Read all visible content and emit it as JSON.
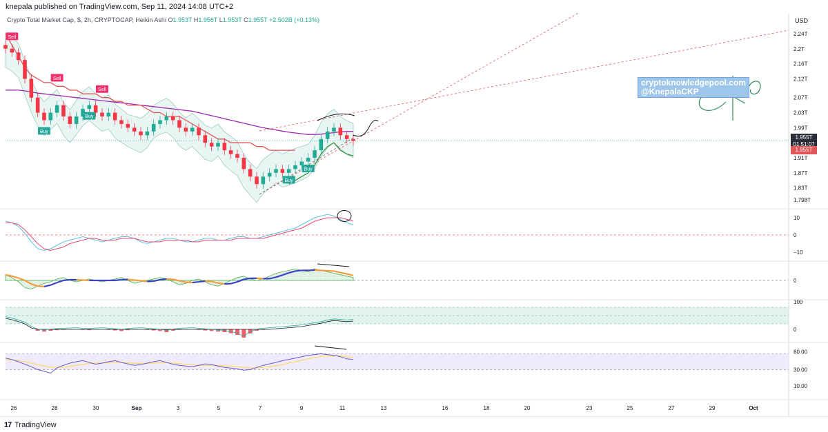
{
  "header": {
    "published": "knepala published on TradingView.com, Sep 11, 2024 14:08 UTC+2"
  },
  "symbol": {
    "title": "Crypto Total Market Cap, $, 2h, CRYPTOCAP, Heikin Ashi",
    "o_label": "O",
    "o": "1.953T",
    "h_label": "H",
    "h": "1.956T",
    "l_label": "L",
    "l": "1.953T",
    "c_label": "C",
    "c": "1.955T",
    "change": "+2.502B (+0.13%)"
  },
  "currency": "USD",
  "price_tags": {
    "last": "1.955T",
    "countdown": "01:51:07",
    "second": "1.955T"
  },
  "watermark": {
    "line1": "cryptoknowledgepool.com",
    "line2": "@KnepalaCKP"
  },
  "footer": {
    "logo_mark": "17",
    "brand": "TradingView"
  },
  "colors": {
    "up": "#22ab94",
    "down": "#f23645",
    "supertrend": "#e15759",
    "ema": "#9c27b0",
    "band": "#bfe3dd",
    "support": "#388e3c",
    "buy": "#26a69a",
    "sell": "#f0306a",
    "stoch_k": "#5fc3e4",
    "stoch_d": "#e84a6f",
    "wave": "#3c40c6",
    "wave_alt": "#f39c3d",
    "rsi": "#6a5acd",
    "rsi_ma": "#ffd54f"
  },
  "chart_data": {
    "type": "candlestick",
    "main": {
      "y_ticks": [
        "2.24T",
        "2.2T",
        "2.16T",
        "2.12T",
        "2.07T",
        "2.03T",
        "1.99T",
        "1.95T",
        "1.91T",
        "1.87T",
        "1.83T",
        "1.798T"
      ],
      "ylim": [
        1.78,
        2.26
      ],
      "close": [
        2.2,
        2.19,
        2.17,
        2.12,
        2.07,
        2.03,
        2.01,
        2.03,
        2.05,
        2.02,
        2.0,
        2.02,
        2.04,
        2.05,
        2.03,
        2.02,
        2.03,
        2.01,
        2.0,
        1.99,
        1.98,
        1.97,
        1.98,
        2.0,
        2.01,
        2.02,
        2.01,
        1.99,
        1.98,
        1.99,
        1.97,
        1.95,
        1.94,
        1.95,
        1.93,
        1.92,
        1.91,
        1.88,
        1.86,
        1.84,
        1.86,
        1.87,
        1.88,
        1.87,
        1.88,
        1.89,
        1.9,
        1.91,
        1.93,
        1.96,
        1.98,
        1.99,
        1.97,
        1.96,
        1.955
      ],
      "supertrend": [
        2.24,
        2.21,
        2.18,
        2.15,
        2.13,
        2.12,
        2.11,
        2.11,
        2.1,
        2.1,
        2.09,
        2.09,
        2.08,
        2.08,
        2.08,
        2.07,
        2.07,
        2.06,
        2.06,
        2.05,
        2.05,
        2.05,
        2.04,
        2.03,
        2.03,
        2.02,
        2.02,
        2.02,
        2.01,
        2.0,
        1.99,
        1.98,
        1.97,
        1.96,
        1.96,
        1.95,
        1.95,
        1.95,
        1.95,
        1.94,
        1.94,
        1.93,
        1.93,
        1.93,
        1.93,
        1.93,
        1.93,
        1.93,
        1.94,
        1.94,
        1.94,
        1.94,
        1.95,
        1.95,
        1.95
      ],
      "ema": [
        2.09,
        2.09,
        2.09,
        2.088,
        2.085,
        2.082,
        2.08,
        2.078,
        2.076,
        2.074,
        2.072,
        2.07,
        2.068,
        2.066,
        2.064,
        2.062,
        2.06,
        2.058,
        2.056,
        2.054,
        2.052,
        2.05,
        2.048,
        2.046,
        2.044,
        2.042,
        2.04,
        2.038,
        2.036,
        2.034,
        2.03,
        2.026,
        2.022,
        2.018,
        2.014,
        2.01,
        2.006,
        2.002,
        1.998,
        1.994,
        1.99,
        1.987,
        1.984,
        1.981,
        1.978,
        1.976,
        1.974,
        1.972,
        1.972,
        1.973,
        1.975,
        1.977,
        1.979,
        1.98,
        1.98
      ],
      "signals": [
        {
          "label": "Sell",
          "i": 1
        },
        {
          "label": "Buy",
          "i": 6
        },
        {
          "label": "Sell",
          "i": 8
        },
        {
          "label": "Buy",
          "i": 13
        },
        {
          "label": "Sell",
          "i": 15
        },
        {
          "label": "Buy",
          "i": 44
        },
        {
          "label": "Buy",
          "i": 47
        }
      ]
    },
    "stoch": {
      "y_ticks": [
        "10",
        "0",
        "−10"
      ],
      "ylim": [
        -14,
        14
      ],
      "k": [
        8,
        7,
        5,
        1,
        -4,
        -8,
        -9,
        -8,
        -6,
        -4,
        -3,
        -2,
        -1,
        -2,
        -3,
        -4,
        -3,
        -2,
        -1,
        -1,
        -2,
        -4,
        -5,
        -4,
        -3,
        -2,
        -2,
        -3,
        -4,
        -4,
        -3,
        -2,
        -2,
        -3,
        -3,
        -2,
        -1,
        -1,
        -2,
        -2,
        -1,
        0,
        1,
        2,
        3,
        4,
        6,
        8,
        10,
        11,
        12,
        11,
        9,
        7,
        6
      ],
      "d": [
        7,
        7,
        6,
        3,
        -1,
        -5,
        -8,
        -9,
        -8,
        -7,
        -5,
        -4,
        -3,
        -2,
        -2,
        -3,
        -3,
        -3,
        -2,
        -2,
        -2,
        -3,
        -4,
        -4,
        -4,
        -3,
        -3,
        -3,
        -3,
        -4,
        -4,
        -3,
        -3,
        -3,
        -3,
        -3,
        -2,
        -2,
        -2,
        -2,
        -2,
        -1,
        0,
        1,
        2,
        3,
        4,
        6,
        8,
        9,
        10,
        10,
        10,
        9,
        8
      ]
    },
    "wave": {
      "y_ticks": [
        "0"
      ],
      "ylim": [
        -12,
        12
      ],
      "values": [
        4,
        2,
        -1,
        -5,
        -6,
        -4,
        -2,
        -1,
        1,
        2,
        0,
        -1,
        0,
        1,
        0,
        -1,
        0,
        1,
        2,
        0,
        -2,
        -1,
        0,
        1,
        2,
        1,
        -1,
        -3,
        -2,
        0,
        1,
        -1,
        -3,
        -4,
        -2,
        0,
        2,
        3,
        1,
        0,
        1,
        3,
        5,
        6,
        7,
        8,
        7,
        6,
        8,
        7,
        6,
        5,
        4,
        3,
        2
      ]
    },
    "mfi": {
      "y_ticks": [
        "100",
        "0"
      ],
      "ylim": [
        -40,
        100
      ],
      "values": [
        40,
        35,
        28,
        20,
        5,
        -5,
        -8,
        -5,
        -3,
        -2,
        -1,
        0,
        -2,
        -3,
        -1,
        0,
        -2,
        -4,
        -6,
        -3,
        -1,
        0,
        -2,
        -4,
        -6,
        -10,
        -5,
        -2,
        -1,
        0,
        -2,
        -4,
        -6,
        -8,
        -10,
        -14,
        -20,
        -30,
        -15,
        -5,
        -2,
        0,
        2,
        4,
        6,
        8,
        10,
        14,
        18,
        22,
        28,
        32,
        30,
        28,
        30
      ]
    },
    "rsi": {
      "y_ticks": [
        "80.00",
        "30.00",
        "10.00"
      ],
      "ylim": [
        0,
        100
      ],
      "values": [
        62,
        58,
        52,
        45,
        38,
        30,
        25,
        20,
        35,
        42,
        48,
        52,
        55,
        50,
        45,
        48,
        52,
        55,
        50,
        46,
        42,
        44,
        48,
        52,
        55,
        50,
        45,
        42,
        40,
        38,
        42,
        46,
        44,
        40,
        36,
        34,
        32,
        28,
        30,
        36,
        42,
        46,
        50,
        55,
        58,
        62,
        66,
        70,
        72,
        74,
        72,
        70,
        66,
        60,
        58
      ],
      "ma": [
        58,
        57,
        55,
        52,
        48,
        44,
        40,
        37,
        36,
        37,
        39,
        42,
        45,
        47,
        48,
        48,
        49,
        50,
        50,
        49,
        48,
        47,
        47,
        48,
        49,
        49,
        48,
        47,
        45,
        43,
        42,
        42,
        42,
        42,
        41,
        40,
        38,
        36,
        34,
        34,
        36,
        38,
        41,
        44,
        48,
        52,
        56,
        60,
        64,
        67,
        68,
        69,
        68,
        66,
        64
      ]
    },
    "x_ticks": [
      "26",
      "28",
      "30",
      "Sep",
      "3",
      "5",
      "7",
      "9",
      "11",
      "13",
      "16",
      "18",
      "20",
      "23",
      "25",
      "27",
      "29",
      "Oct"
    ]
  }
}
